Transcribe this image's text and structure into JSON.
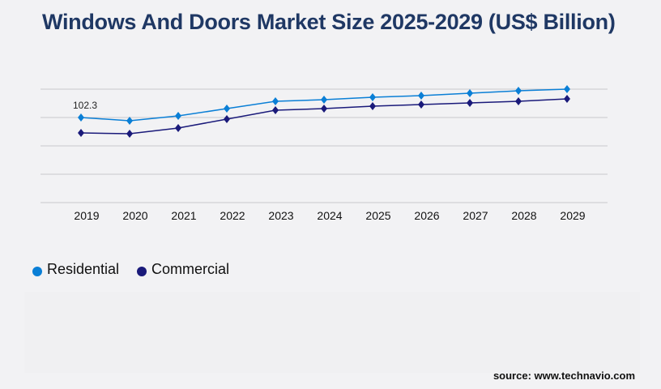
{
  "chart_data": {
    "type": "line",
    "title": "Windows And Doors Market Size 2025-2029 (US$ Billion)",
    "categories": [
      "2019",
      "2020",
      "2021",
      "2022",
      "2023",
      "2024",
      "2025",
      "2026",
      "2027",
      "2028",
      "2029"
    ],
    "series": [
      {
        "name": "Residential",
        "color": "#0a7fd6",
        "values": [
          102.3,
          98.4,
          104.2,
          113.0,
          121.8,
          123.7,
          126.7,
          128.6,
          131.5,
          134.4,
          136.4
        ]
      },
      {
        "name": "Commercial",
        "color": "#1a1a7a",
        "values": [
          83.8,
          82.8,
          89.6,
          100.4,
          111.1,
          113.0,
          115.9,
          117.9,
          119.8,
          121.8,
          124.7
        ]
      }
    ],
    "data_labels": [
      {
        "series": "Residential",
        "category": "2019",
        "text": "102.3"
      }
    ],
    "ylim": [
      0,
      136.4
    ],
    "grid": true,
    "legend": "bottom-left",
    "xlabel": "",
    "ylabel": ""
  },
  "source": "source: www.technavio.com"
}
